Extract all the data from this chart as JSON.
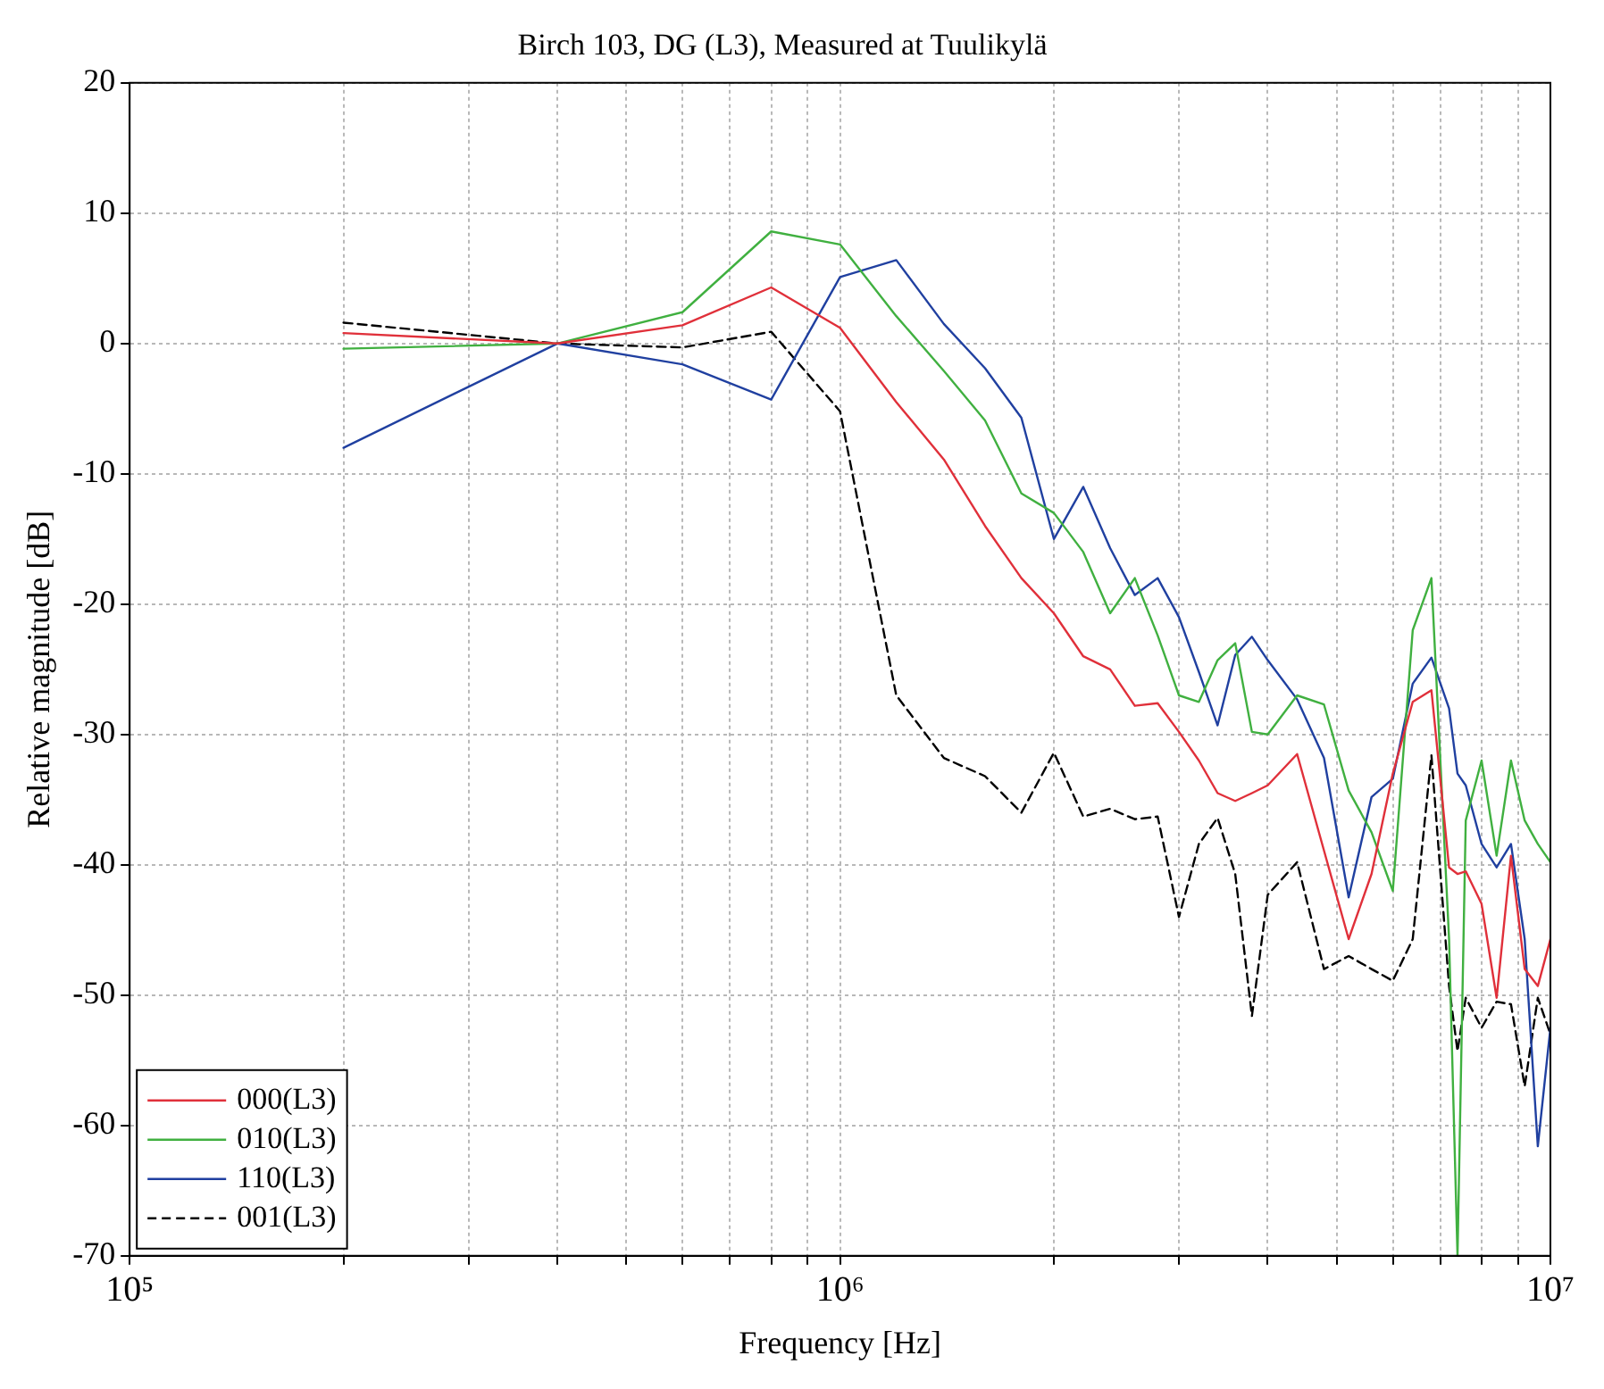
{
  "chart_data": {
    "type": "line",
    "title": "Birch 103, DG (L3), Measured at Tuulikylä",
    "xlabel": "Frequency [Hz]",
    "ylabel": "Relative magnitude [dB]",
    "log": "x",
    "grid": true,
    "legend": "bottom left",
    "x": [
      200000,
      400000,
      600000,
      800000,
      1000000,
      1200000,
      1400000,
      1600000,
      1800000,
      2000000,
      2200000,
      2400000,
      2600000,
      2800000,
      3000000,
      3200000,
      3400000,
      3600000,
      3800000,
      4000000,
      4400000,
      4800000,
      5200000,
      5600000,
      6000000,
      6400000,
      6800000,
      7200000,
      7400000,
      7600000,
      8000000,
      8400000,
      8800000,
      9200000,
      9600000,
      10000000
    ],
    "xlim": [
      100000,
      10000000
    ],
    "xticks": [
      {
        "value": 100000,
        "label": "10⁵"
      },
      {
        "value": 200000,
        "label": null
      },
      {
        "value": 300000,
        "label": null
      },
      {
        "value": 400000,
        "label": null
      },
      {
        "value": 500000,
        "label": null
      },
      {
        "value": 600000,
        "label": null
      },
      {
        "value": 700000,
        "label": null
      },
      {
        "value": 800000,
        "label": null
      },
      {
        "value": 900000,
        "label": null
      },
      {
        "value": 1000000,
        "label": "10⁶"
      },
      {
        "value": 2000000,
        "label": null
      },
      {
        "value": 3000000,
        "label": null
      },
      {
        "value": 4000000,
        "label": null
      },
      {
        "value": 5000000,
        "label": null
      },
      {
        "value": 6000000,
        "label": null
      },
      {
        "value": 7000000,
        "label": null
      },
      {
        "value": 8000000,
        "label": null
      },
      {
        "value": 9000000,
        "label": null
      },
      {
        "value": 10000000,
        "label": "10⁷"
      }
    ],
    "ylim": [
      -70,
      20
    ],
    "yticks": [
      -70,
      -60,
      -50,
      -40,
      -30,
      -20,
      -10,
      0,
      10,
      20
    ],
    "series": [
      {
        "name": "000(L3)",
        "color": "#e0303a",
        "values": [
          0.8,
          0,
          1.4,
          4.3,
          1.2,
          -4.5,
          -8.9,
          -14,
          -18,
          -20.7,
          -24,
          -25,
          -27.8,
          -27.6,
          -29.8,
          -32,
          -34.5,
          -35.1,
          -34.5,
          -33.9,
          -31.5,
          -38.9,
          -45.7,
          -40.7,
          -33,
          -27.5,
          -26.6,
          -40.2,
          -40.7,
          -40.5,
          -43,
          -50.2,
          -39.3,
          -48,
          -49.3,
          -45.7
        ]
      },
      {
        "name": "010(L3)",
        "color": "#40b040",
        "values": [
          -0.4,
          0,
          2.4,
          8.6,
          7.6,
          2.1,
          -2.1,
          -5.9,
          -11.5,
          -13,
          -16,
          -20.7,
          -18,
          -22.4,
          -27,
          -27.5,
          -24.3,
          -23,
          -29.8,
          -30,
          -27,
          -27.7,
          -34.3,
          -37.5,
          -42,
          -22,
          -18,
          -45.7,
          -70,
          -36.6,
          -32,
          -39.3,
          -32,
          -36.6,
          -38.4,
          -39.8
        ]
      },
      {
        "name": "110(L3)",
        "color": "#2040a0",
        "values": [
          -8,
          0,
          -1.6,
          -4.3,
          5.1,
          6.4,
          1.5,
          -1.9,
          -5.7,
          -15,
          -11,
          -15.7,
          -19.3,
          -18,
          -21,
          -25.2,
          -29.3,
          -23.9,
          -22.5,
          -24.3,
          -27.3,
          -31.8,
          -42.5,
          -34.8,
          -33.4,
          -26.1,
          -24.1,
          -28,
          -33,
          -33.9,
          -38.4,
          -40.2,
          -38.4,
          -45.7,
          -61.6,
          -52.5
        ]
      },
      {
        "name": "001(L3)",
        "color": "#000000",
        "line_style": "dashed",
        "values": [
          1.6,
          0,
          -0.3,
          0.9,
          -5.2,
          -27,
          -31.8,
          -33.2,
          -36,
          -31.4,
          -36.3,
          -35.7,
          -36.5,
          -36.3,
          -44,
          -38.4,
          -36.4,
          -40.7,
          -51.6,
          -42.3,
          -39.8,
          -48,
          -47,
          -48,
          -48.9,
          -45.7,
          -31.6,
          -49.3,
          -54.3,
          -50.2,
          -52.5,
          -50.5,
          -50.7,
          -57,
          -50.2,
          -53
        ]
      }
    ]
  }
}
